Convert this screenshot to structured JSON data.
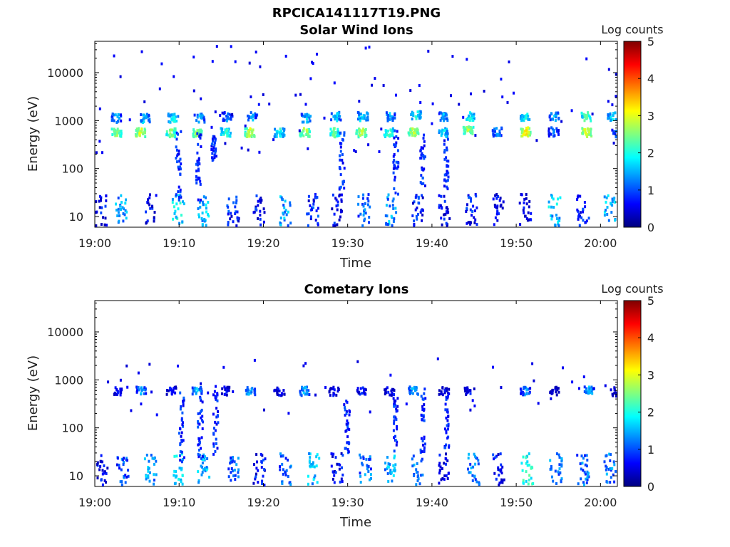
{
  "figure_title": "RPCICA141117T19.PNG",
  "chart_data": [
    {
      "type": "heatmap",
      "title": "Solar Wind Ions",
      "xlabel": "Time",
      "ylabel": "Energy (eV)",
      "x_ticks": [
        "19:00",
        "19:10",
        "19:20",
        "19:30",
        "19:40",
        "19:50",
        "20:00"
      ],
      "y_ticks": [
        "10",
        "100",
        "1000",
        "10000"
      ],
      "y_scale": "log",
      "ylim": [
        6,
        45000
      ],
      "xlim_minutes": [
        0,
        62
      ],
      "colorbar": {
        "label": "Log counts",
        "ticks": [
          "0",
          "1",
          "2",
          "3",
          "4",
          "5"
        ],
        "range": [
          0,
          5
        ]
      },
      "grid": false,
      "clusters": [
        {
          "t": 2.5,
          "e": 600,
          "v": 3.0
        },
        {
          "t": 2.5,
          "e": 1200,
          "v": 1.8
        },
        {
          "t": 5.3,
          "e": 600,
          "v": 3.3
        },
        {
          "t": 5.8,
          "e": 1200,
          "v": 2.0
        },
        {
          "t": 8.9,
          "e": 600,
          "v": 2.9
        },
        {
          "t": 9.2,
          "e": 1200,
          "v": 2.2
        },
        {
          "t": 12.0,
          "e": 600,
          "v": 3.0
        },
        {
          "t": 12.3,
          "e": 1200,
          "v": 1.9
        },
        {
          "t": 15.4,
          "e": 600,
          "v": 2.5
        },
        {
          "t": 15.6,
          "e": 1300,
          "v": 1.6
        },
        {
          "t": 18.3,
          "e": 600,
          "v": 3.2
        },
        {
          "t": 18.6,
          "e": 1300,
          "v": 1.7
        },
        {
          "t": 21.8,
          "e": 600,
          "v": 2.3
        },
        {
          "t": 24.8,
          "e": 600,
          "v": 3.1
        },
        {
          "t": 25.0,
          "e": 1200,
          "v": 2.0
        },
        {
          "t": 28.3,
          "e": 600,
          "v": 2.7
        },
        {
          "t": 28.5,
          "e": 1300,
          "v": 2.0
        },
        {
          "t": 31.5,
          "e": 600,
          "v": 3.1
        },
        {
          "t": 31.7,
          "e": 1300,
          "v": 2.2
        },
        {
          "t": 34.8,
          "e": 600,
          "v": 2.6
        },
        {
          "t": 34.9,
          "e": 1300,
          "v": 1.9
        },
        {
          "t": 37.7,
          "e": 600,
          "v": 3.2
        },
        {
          "t": 38.0,
          "e": 1400,
          "v": 2.4
        },
        {
          "t": 41.2,
          "e": 600,
          "v": 2.2
        },
        {
          "t": 41.3,
          "e": 1300,
          "v": 1.8
        },
        {
          "t": 44.2,
          "e": 650,
          "v": 3.0
        },
        {
          "t": 44.4,
          "e": 1300,
          "v": 2.3
        },
        {
          "t": 47.6,
          "e": 620,
          "v": 1.7
        },
        {
          "t": 51.0,
          "e": 620,
          "v": 3.5
        },
        {
          "t": 51.0,
          "e": 1300,
          "v": 2.4
        },
        {
          "t": 54.3,
          "e": 620,
          "v": 1.5
        },
        {
          "t": 54.4,
          "e": 1300,
          "v": 2.0
        },
        {
          "t": 58.2,
          "e": 600,
          "v": 3.4
        },
        {
          "t": 58.2,
          "e": 1300,
          "v": 2.7
        },
        {
          "t": 61.3,
          "e": 1300,
          "v": 2.1
        },
        {
          "t": 61.8,
          "e": 600,
          "v": 1.5
        }
      ],
      "low_columns": [
        {
          "t": 0.6,
          "v": 1.0
        },
        {
          "t": 3.0,
          "v": 1.8
        },
        {
          "t": 6.5,
          "v": 1.0
        },
        {
          "t": 9.8,
          "v": 2.2
        },
        {
          "t": 12.8,
          "v": 2.0
        },
        {
          "t": 16.3,
          "v": 1.2
        },
        {
          "t": 19.4,
          "v": 1.0
        },
        {
          "t": 22.5,
          "v": 1.8
        },
        {
          "t": 25.7,
          "v": 1.2
        },
        {
          "t": 28.6,
          "v": 1.0
        },
        {
          "t": 31.8,
          "v": 1.6
        },
        {
          "t": 35.0,
          "v": 1.8
        },
        {
          "t": 38.2,
          "v": 1.2
        },
        {
          "t": 41.4,
          "v": 1.0
        },
        {
          "t": 44.6,
          "v": 1.1
        },
        {
          "t": 47.8,
          "v": 0.9
        },
        {
          "t": 51.0,
          "v": 1.0
        },
        {
          "t": 54.4,
          "v": 2.0
        },
        {
          "t": 57.8,
          "v": 1.1
        },
        {
          "t": 61.0,
          "v": 2.0
        }
      ],
      "streaks": [
        {
          "t": 9.8,
          "from": 20,
          "to": 650
        },
        {
          "t": 12.2,
          "from": 20,
          "to": 600
        },
        {
          "t": 14.0,
          "from": 150,
          "to": 500
        },
        {
          "t": 29.2,
          "from": 40,
          "to": 600
        },
        {
          "t": 35.6,
          "from": 30,
          "to": 700
        },
        {
          "t": 38.8,
          "from": 40,
          "to": 600
        },
        {
          "t": 41.6,
          "from": 40,
          "to": 500
        }
      ]
    },
    {
      "type": "heatmap",
      "title": "Cometary Ions",
      "xlabel": "Time",
      "ylabel": "Energy (eV)",
      "x_ticks": [
        "19:00",
        "19:10",
        "19:20",
        "19:30",
        "19:40",
        "19:50",
        "20:00"
      ],
      "y_ticks": [
        "10",
        "100",
        "1000",
        "10000"
      ],
      "y_scale": "log",
      "ylim": [
        6,
        45000
      ],
      "xlim_minutes": [
        0,
        62
      ],
      "colorbar": {
        "label": "Log counts",
        "ticks": [
          "0",
          "1",
          "2",
          "3",
          "4",
          "5"
        ],
        "range": [
          0,
          5
        ]
      },
      "grid": false,
      "clusters": [
        {
          "t": 2.6,
          "e": 620,
          "v": 1.2
        },
        {
          "t": 5.4,
          "e": 620,
          "v": 1.8
        },
        {
          "t": 9.0,
          "e": 620,
          "v": 1.2
        },
        {
          "t": 12.0,
          "e": 620,
          "v": 1.9
        },
        {
          "t": 15.4,
          "e": 620,
          "v": 1.0
        },
        {
          "t": 18.3,
          "e": 620,
          "v": 1.9
        },
        {
          "t": 21.8,
          "e": 620,
          "v": 1.0
        },
        {
          "t": 24.8,
          "e": 620,
          "v": 1.9
        },
        {
          "t": 28.3,
          "e": 620,
          "v": 1.0
        },
        {
          "t": 31.6,
          "e": 620,
          "v": 1.2
        },
        {
          "t": 34.8,
          "e": 620,
          "v": 1.0
        },
        {
          "t": 37.7,
          "e": 620,
          "v": 1.9
        },
        {
          "t": 41.3,
          "e": 620,
          "v": 1.0
        },
        {
          "t": 44.3,
          "e": 620,
          "v": 1.1
        },
        {
          "t": 51.0,
          "e": 620,
          "v": 1.7
        },
        {
          "t": 54.4,
          "e": 620,
          "v": 0.8
        },
        {
          "t": 58.6,
          "e": 620,
          "v": 1.9
        },
        {
          "t": 61.8,
          "e": 600,
          "v": 0.8
        }
      ],
      "low_columns": [
        {
          "t": 0.8,
          "v": 1.0
        },
        {
          "t": 3.2,
          "v": 1.4
        },
        {
          "t": 6.5,
          "v": 1.8
        },
        {
          "t": 9.9,
          "v": 2.1
        },
        {
          "t": 12.8,
          "v": 2.0
        },
        {
          "t": 16.3,
          "v": 1.5
        },
        {
          "t": 19.4,
          "v": 1.1
        },
        {
          "t": 22.5,
          "v": 1.5
        },
        {
          "t": 25.8,
          "v": 1.9
        },
        {
          "t": 28.6,
          "v": 1.0
        },
        {
          "t": 32.0,
          "v": 1.6
        },
        {
          "t": 35.0,
          "v": 1.8
        },
        {
          "t": 38.2,
          "v": 1.7
        },
        {
          "t": 41.4,
          "v": 1.0
        },
        {
          "t": 44.8,
          "v": 1.6
        },
        {
          "t": 47.8,
          "v": 1.1
        },
        {
          "t": 51.2,
          "v": 2.4
        },
        {
          "t": 54.6,
          "v": 1.6
        },
        {
          "t": 57.8,
          "v": 1.6
        },
        {
          "t": 61.0,
          "v": 1.7
        }
      ],
      "streaks": [
        {
          "t": 10.2,
          "from": 20,
          "to": 600
        },
        {
          "t": 12.4,
          "from": 20,
          "to": 600
        },
        {
          "t": 14.2,
          "from": 30,
          "to": 800
        },
        {
          "t": 29.8,
          "from": 30,
          "to": 400
        },
        {
          "t": 35.6,
          "from": 30,
          "to": 700
        },
        {
          "t": 38.8,
          "from": 30,
          "to": 900
        },
        {
          "t": 41.6,
          "from": 40,
          "to": 600
        }
      ]
    }
  ]
}
